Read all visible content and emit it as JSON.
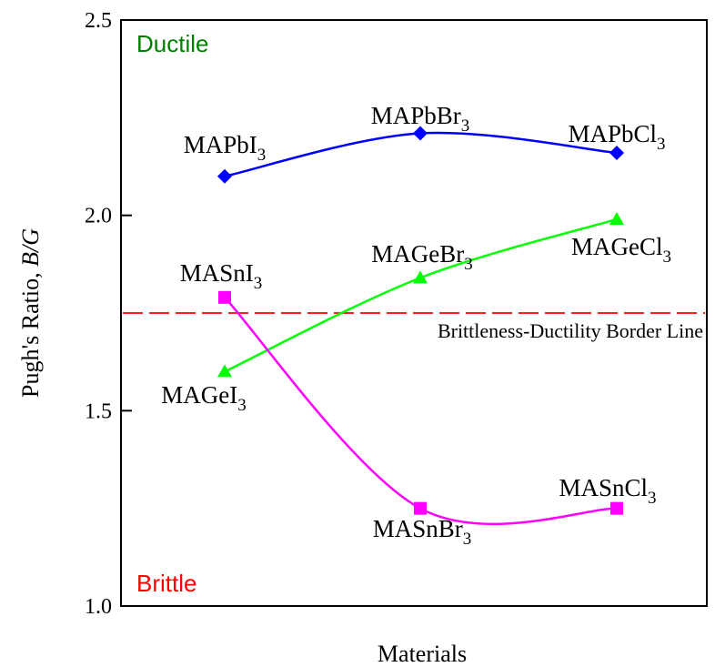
{
  "chart_data": {
    "type": "line",
    "categories": [
      "I3",
      "Br3",
      "Cl3"
    ],
    "xlabel": "Materials",
    "ylabel_main": "Pugh's Ratio, ",
    "ylabel_var": "B/G",
    "ylim": [
      1.0,
      2.5
    ],
    "yticks": [
      "1.0",
      "1.5",
      "2.0",
      "2.5"
    ],
    "grid": false,
    "series": [
      {
        "id": "pb",
        "color": "#0000ff",
        "marker": "diamond",
        "values": [
          2.1,
          2.21,
          2.16
        ],
        "labels": [
          {
            "base": "MAPbI",
            "sub": "3"
          },
          {
            "base": "MAPbBr",
            "sub": "3"
          },
          {
            "base": "MAPbCl",
            "sub": "3"
          }
        ]
      },
      {
        "id": "ge",
        "color": "#00ff00",
        "marker": "triangle",
        "values": [
          1.6,
          1.84,
          1.99
        ],
        "labels": [
          {
            "base": "MAGeI",
            "sub": "3"
          },
          {
            "base": "MAGeBr",
            "sub": "3"
          },
          {
            "base": "MAGeCl",
            "sub": "3"
          }
        ]
      },
      {
        "id": "sn",
        "color": "#ff00ff",
        "marker": "square",
        "values": [
          1.79,
          1.25,
          1.25
        ],
        "labels": [
          {
            "base": "MASnI",
            "sub": "3"
          },
          {
            "base": "MASnBr",
            "sub": "3"
          },
          {
            "base": "MASnCl",
            "sub": "3"
          }
        ]
      }
    ],
    "reference_line": {
      "y": 1.75,
      "color": "#ff0000",
      "label": "Brittleness-Ductility Border Line"
    },
    "annotations": {
      "ductile": {
        "text": "Ductile",
        "color": "#008000"
      },
      "brittle": {
        "text": "Brittle",
        "color": "#ff0000"
      }
    }
  }
}
